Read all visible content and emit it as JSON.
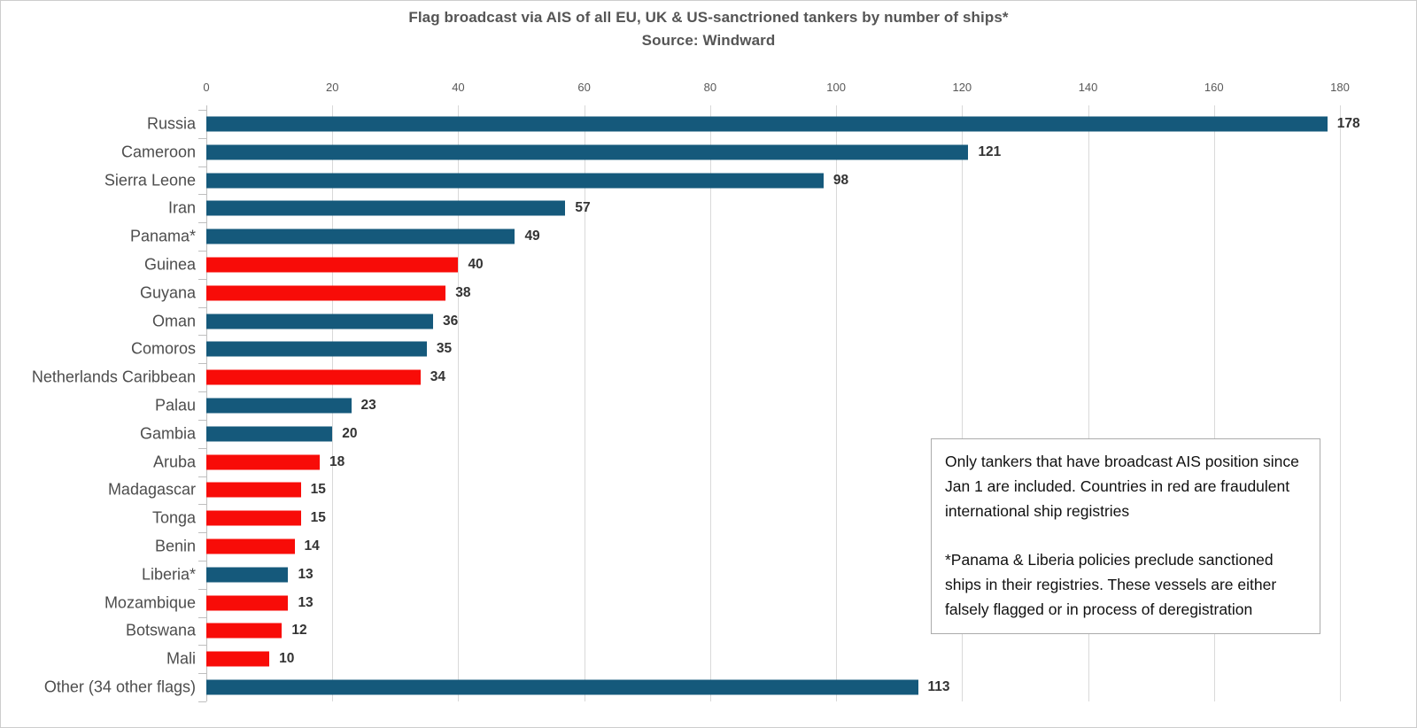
{
  "title": {
    "line1": "Flag broadcast via AIS of all EU, UK & US-sanctrioned tankers by number of ships*",
    "line2": "Source: Windward"
  },
  "chart_data": {
    "type": "bar",
    "orientation": "horizontal",
    "title": "Flag broadcast via AIS of all EU, UK & US-sanctrioned tankers by number of ships*",
    "subtitle": "Source: Windward",
    "xlabel": "",
    "ylabel": "",
    "xlim": [
      0,
      180
    ],
    "xticks": [
      0,
      20,
      40,
      60,
      80,
      100,
      120,
      140,
      160,
      180
    ],
    "grid": true,
    "value_axis_position": "top",
    "categories": [
      "Russia",
      "Cameroon",
      "Sierra Leone",
      "Iran",
      "Panama*",
      "Guinea",
      "Guyana",
      "Oman",
      "Comoros",
      "Netherlands Caribbean",
      "Palau",
      "Gambia",
      "Aruba",
      "Madagascar",
      "Tonga",
      "Benin",
      "Liberia*",
      "Mozambique",
      "Botswana",
      "Mali",
      "Other (34 other flags)"
    ],
    "values": [
      178,
      121,
      98,
      57,
      49,
      40,
      38,
      36,
      35,
      34,
      23,
      20,
      18,
      15,
      15,
      14,
      13,
      13,
      12,
      10,
      113
    ],
    "bar_colors": [
      "#15597B",
      "#15597B",
      "#15597B",
      "#15597B",
      "#15597B",
      "#F80C08",
      "#F80C08",
      "#15597B",
      "#15597B",
      "#F80C08",
      "#15597B",
      "#15597B",
      "#F80C08",
      "#F80C08",
      "#F80C08",
      "#F80C08",
      "#15597B",
      "#F80C08",
      "#F80C08",
      "#F80C08",
      "#15597B"
    ],
    "colors": {
      "standard_registry": "#15597B",
      "fraudulent_registry": "#F80C08",
      "gridline": "#d9d9d9"
    },
    "data_labels": true
  },
  "annotation": {
    "p1": "Only tankers that have broadcast AIS position since Jan 1 are included. Countries in red are fraudulent international ship registries",
    "p2": "*Panama & Liberia policies preclude sanctioned ships in their registries. These vessels are either falsely flagged or in process of deregistration"
  }
}
